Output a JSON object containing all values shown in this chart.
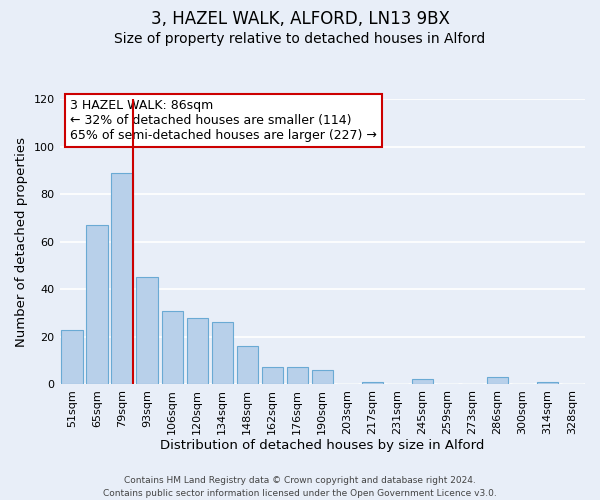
{
  "title": "3, HAZEL WALK, ALFORD, LN13 9BX",
  "subtitle": "Size of property relative to detached houses in Alford",
  "xlabel": "Distribution of detached houses by size in Alford",
  "ylabel": "Number of detached properties",
  "categories": [
    "51sqm",
    "65sqm",
    "79sqm",
    "93sqm",
    "106sqm",
    "120sqm",
    "134sqm",
    "148sqm",
    "162sqm",
    "176sqm",
    "190sqm",
    "203sqm",
    "217sqm",
    "231sqm",
    "245sqm",
    "259sqm",
    "273sqm",
    "286sqm",
    "300sqm",
    "314sqm",
    "328sqm"
  ],
  "values": [
    23,
    67,
    89,
    45,
    31,
    28,
    26,
    16,
    7,
    7,
    6,
    0,
    1,
    0,
    2,
    0,
    0,
    3,
    0,
    1,
    0
  ],
  "bar_color": "#b8d0ea",
  "bar_edge_color": "#6aaad4",
  "ylim": [
    0,
    120
  ],
  "yticks": [
    0,
    20,
    40,
    60,
    80,
    100,
    120
  ],
  "property_line_color": "#cc0000",
  "annotation_line1": "3 HAZEL WALK: 86sqm",
  "annotation_line2": "← 32% of detached houses are smaller (114)",
  "annotation_line3": "65% of semi-detached houses are larger (227) →",
  "annotation_box_facecolor": "#ffffff",
  "annotation_box_edgecolor": "#cc0000",
  "footer_line1": "Contains HM Land Registry data © Crown copyright and database right 2024.",
  "footer_line2": "Contains public sector information licensed under the Open Government Licence v3.0.",
  "background_color": "#e8eef8",
  "grid_color": "#ffffff",
  "title_fontsize": 12,
  "subtitle_fontsize": 10,
  "axis_label_fontsize": 9.5,
  "tick_fontsize": 8,
  "annotation_fontsize": 9,
  "footer_fontsize": 6.5
}
